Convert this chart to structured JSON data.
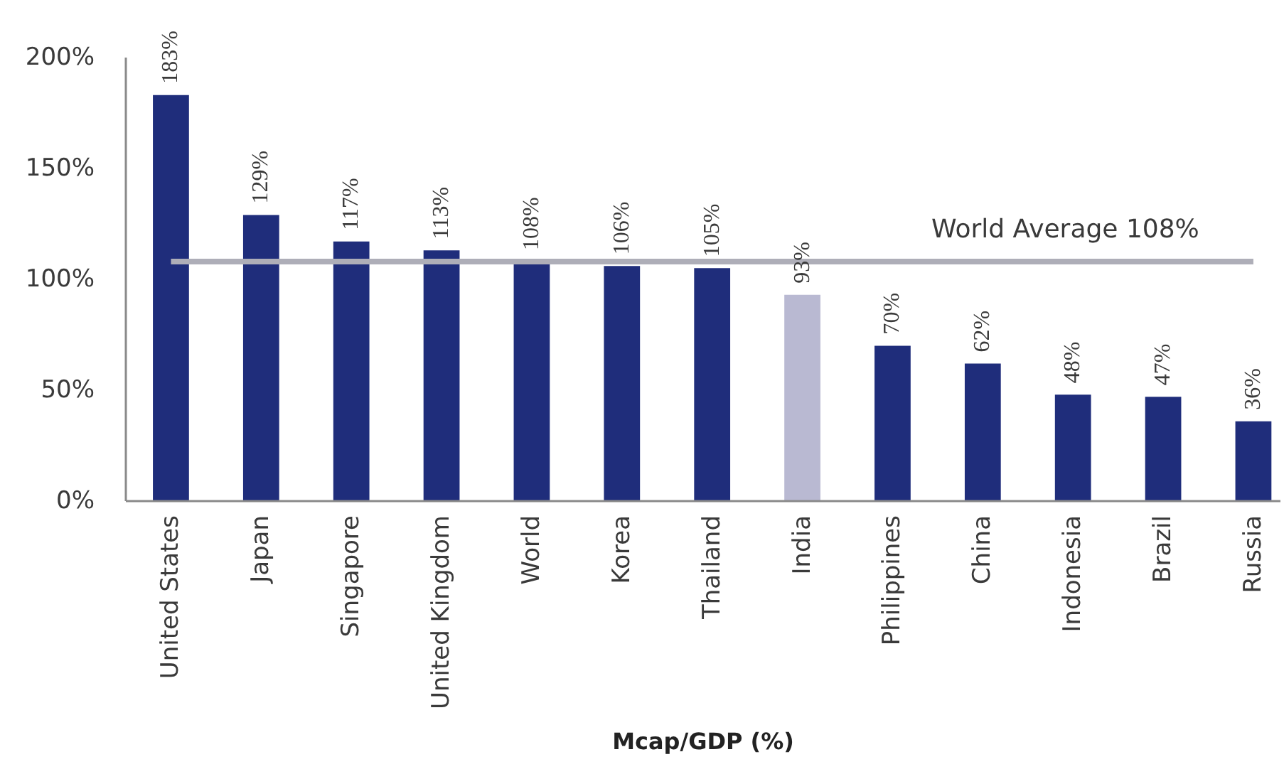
{
  "chart_data": {
    "type": "bar",
    "xlabel": "Mcap/GDP (%)",
    "categories": [
      "United States",
      "Japan",
      "Singapore",
      "United Kingdom",
      "World",
      "Korea",
      "Thailand",
      "India",
      "Philippines",
      "China",
      "Indonesia",
      "Brazil",
      "Russia"
    ],
    "values": [
      183,
      129,
      117,
      113,
      108,
      106,
      105,
      93,
      70,
      62,
      48,
      47,
      36
    ],
    "colors": [
      "#1f2d7b",
      "#1f2d7b",
      "#1f2d7b",
      "#1f2d7b",
      "#1f2d7b",
      "#1f2d7b",
      "#1f2d7b",
      "#b9b9d2",
      "#1f2d7b",
      "#1f2d7b",
      "#1f2d7b",
      "#1f2d7b",
      "#1f2d7b"
    ],
    "value_labels": [
      "183%",
      "129%",
      "117%",
      "113%",
      "108%",
      "106%",
      "105%",
      "93%",
      "70%",
      "62%",
      "48%",
      "47%",
      "36%"
    ],
    "ylim": [
      0,
      200
    ],
    "yticks": [
      {
        "value": 0,
        "label": "0%"
      },
      {
        "value": 50,
        "label": "50%"
      },
      {
        "value": 100,
        "label": "100%"
      },
      {
        "value": 150,
        "label": "150%"
      },
      {
        "value": 200,
        "label": "200%"
      }
    ],
    "ref_lines": [
      {
        "axis": "y",
        "value": 108,
        "label": "World Average 108%",
        "color": "#aeaeb8"
      }
    ]
  }
}
